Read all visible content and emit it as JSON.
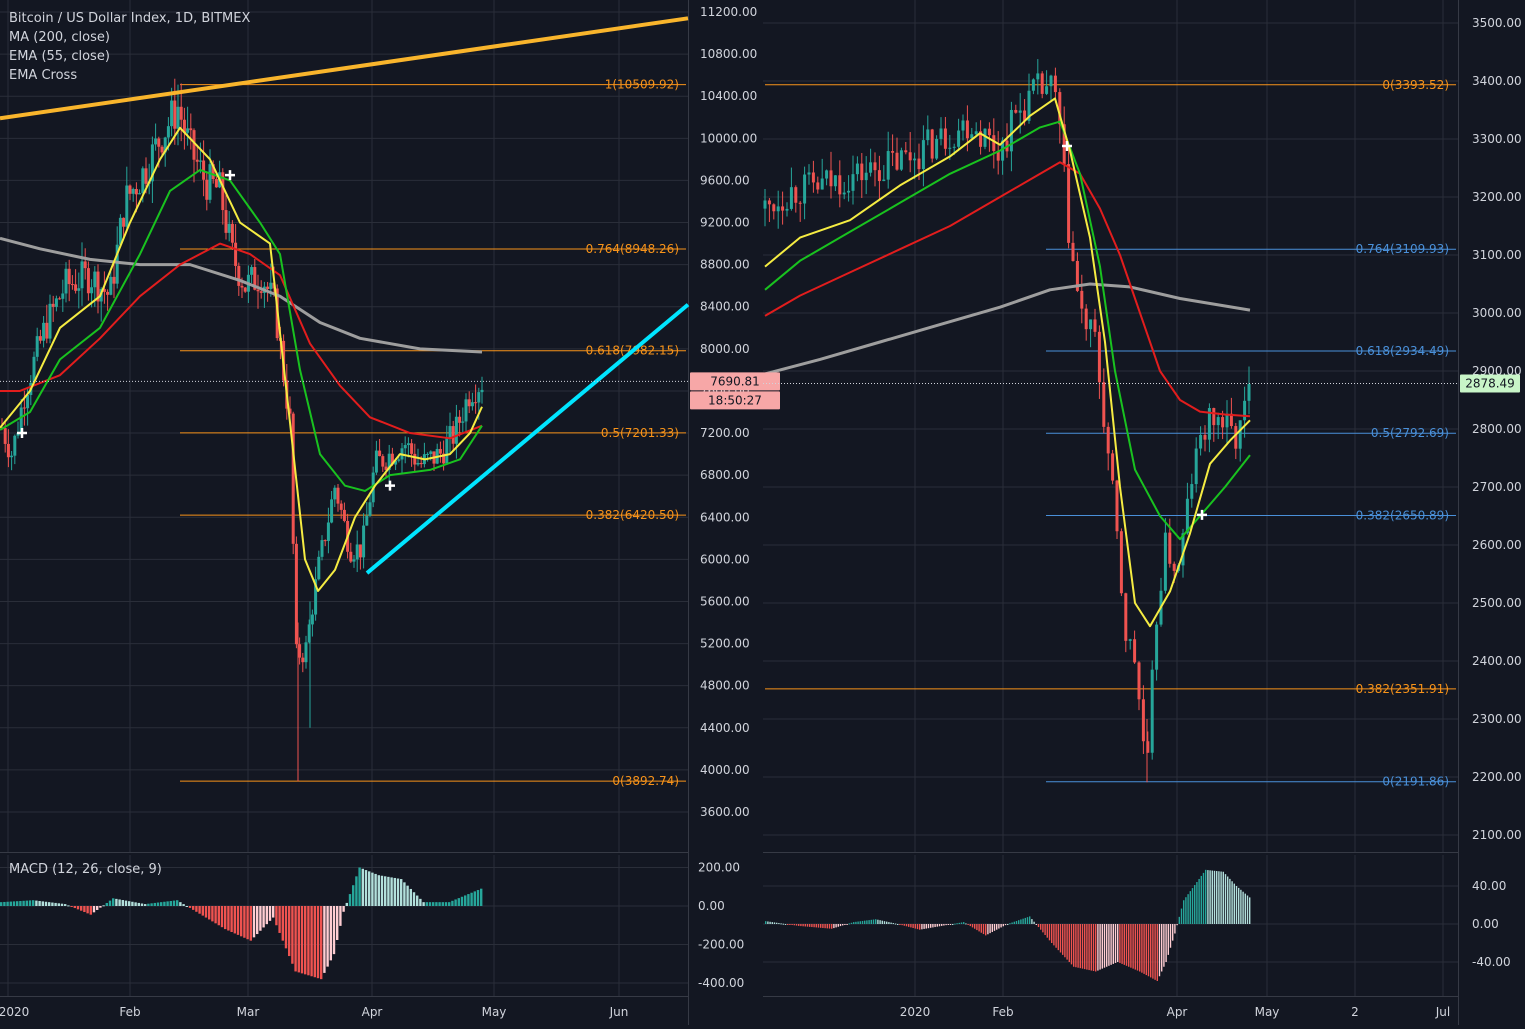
{
  "legend": {
    "symbol": "Bitcoin / US Dollar Index, 1D, BITMEX",
    "ind1": "MA (200, close)",
    "ind2": "EMA (55, close)",
    "ind3": "EMA Cross",
    "macd": "MACD (12, 26, close, 9)"
  },
  "colors": {
    "bg": "#131722",
    "grid": "#2a2e39",
    "text": "#d1d4dc",
    "up": "#26a69a",
    "down": "#ef5350",
    "ma200": "#9e9e9e",
    "ema55": "#e21d1d",
    "emaFast": "#f5ec42",
    "emaSlow": "#19c21f",
    "fibOrange": "#f7931a",
    "fibBlue": "#4a90d9",
    "trendUp": "#00e5ff",
    "trendTop": "#f9b52c"
  },
  "chart_data": [
    {
      "type": "candlestick",
      "title": "Bitcoin / US Dollar Index, 1D, BITMEX",
      "x_ticks": [
        "2020",
        "Feb",
        "Mar",
        "Apr",
        "May",
        "Jun"
      ],
      "y_ticks": [
        "11200.00",
        "10800.00",
        "10400.00",
        "10000.00",
        "9600.00",
        "9200.00",
        "8800.00",
        "8400.00",
        "8000.00",
        "7600.00",
        "7200.00",
        "6800.00",
        "6400.00",
        "6000.00",
        "5600.00",
        "5200.00",
        "4800.00",
        "4400.00",
        "4000.00",
        "3600.00"
      ],
      "ylim": [
        3200,
        11400
      ],
      "last_price": "7690.81",
      "countdown": "18:50:27",
      "fib_levels": [
        {
          "label": "1(10509.92)",
          "value": 10509.92
        },
        {
          "label": "0.764(8948.26)",
          "value": 8948.26
        },
        {
          "label": "0.618(7982.15)",
          "value": 7982.15
        },
        {
          "label": "0.5(7201.33)",
          "value": 7201.33
        },
        {
          "label": "0.382(6420.50)",
          "value": 6420.5
        },
        {
          "label": "0(3892.74)",
          "value": 3892.74
        }
      ],
      "series": [
        {
          "name": "Price",
          "values_approx_close": [
            7200,
            8200,
            8900,
            9300,
            9800,
            10300,
            9700,
            9500,
            8700,
            7900,
            5000,
            5400,
            6200,
            6700,
            6800,
            7100,
            7300,
            6900,
            7000,
            7700
          ]
        },
        {
          "name": "MA (200, close)",
          "values": [
            9000,
            8900,
            8800,
            8800,
            8700,
            8500,
            8200,
            8050,
            7980
          ]
        },
        {
          "name": "EMA (55, close)",
          "values": [
            7600,
            7700,
            8300,
            8800,
            8900,
            8700,
            7300,
            7100,
            7200
          ]
        }
      ],
      "macd": {
        "y_ticks": [
          "200.00",
          "0.00",
          "-200.00",
          "-400.00"
        ],
        "ylim": [
          -440,
          240
        ]
      }
    },
    {
      "type": "candlestick",
      "x_ticks": [
        "2020",
        "Feb",
        "Apr",
        "May",
        "2",
        "Jul"
      ],
      "y_ticks": [
        "3500.00",
        "3400.00",
        "3300.00",
        "3200.00",
        "3100.00",
        "3000.00",
        "2900.00",
        "2800.00",
        "2700.00",
        "2600.00",
        "2500.00",
        "2400.00",
        "2300.00",
        "2200.00",
        "2100.00"
      ],
      "ylim": [
        2070,
        3520
      ],
      "last_price": "2878.49",
      "fib_levels": [
        {
          "label": "0(3393.52)",
          "value": 3393.52,
          "color": "orange"
        },
        {
          "label": "0.764(3109.93)",
          "value": 3109.93,
          "color": "blue"
        },
        {
          "label": "0.618(2934.49)",
          "value": 2934.49,
          "color": "blue"
        },
        {
          "label": "0.5(2792.69)",
          "value": 2792.69,
          "color": "blue"
        },
        {
          "label": "0.382(2650.89)",
          "value": 2650.89,
          "color": "blue"
        },
        {
          "label": "0.382(2351.91)",
          "value": 2351.91,
          "color": "orange"
        },
        {
          "label": "0(2191.86)",
          "value": 2191.86,
          "color": "blue"
        }
      ],
      "series": [
        {
          "name": "Price",
          "values_approx_close": [
            3230,
            3250,
            3280,
            3300,
            3330,
            3370,
            3390,
            3200,
            2950,
            2700,
            2450,
            2250,
            2500,
            2650,
            2800,
            2850,
            2878
          ]
        },
        {
          "name": "MA (200, close)",
          "values": [
            2900,
            2960,
            3020,
            3050,
            3040,
            3005
          ]
        },
        {
          "name": "EMA (55, close)",
          "values": [
            2950,
            3050,
            3150,
            3250,
            3200,
            2900,
            2830,
            2825
          ]
        }
      ],
      "macd": {
        "y_ticks": [
          "40.00",
          "0.00",
          "-40.00"
        ],
        "ylim": [
          -75,
          75
        ]
      }
    }
  ]
}
